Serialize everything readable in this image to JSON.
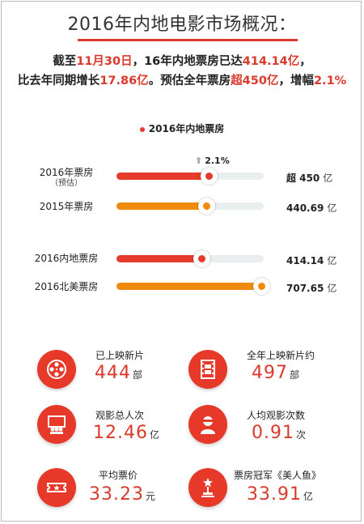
{
  "title": "2016年内地电影市场概况：",
  "summary": {
    "l1_a": "截至",
    "l1_b": "11月30日",
    "l1_c": "，16年内地票房已达",
    "l1_d": "414.14亿",
    "l1_e": "，",
    "l2_a": "比去年同期增长",
    "l2_b": "17.86亿",
    "l2_c": "。预估全年票房",
    "l2_d": "超450亿",
    "l2_e": "，增幅",
    "l2_f": "2.1%"
  },
  "chart_data": {
    "type": "bar",
    "orientation": "horizontal",
    "title": "",
    "legend": [
      "2016年内地票房"
    ],
    "categories": [
      "2016年票房（预估）",
      "2015年票房",
      "2016内地票房",
      "2016北美票房"
    ],
    "values": [
      450,
      440.69,
      414.14,
      707.65
    ],
    "unit": "亿",
    "growth_annotation": "2.1%",
    "colors": [
      "#e53b2c",
      "#f08a0c",
      "#e53b2c",
      "#f08a0c"
    ]
  },
  "rows": [
    {
      "label": "2016年票房",
      "sub": "（预估）",
      "value": "超 450",
      "unit": "亿"
    },
    {
      "label": "2015年票房",
      "sub": "",
      "value": "440.69",
      "unit": "亿"
    },
    {
      "label": "2016内地票房",
      "sub": "",
      "value": "414.14",
      "unit": "亿"
    },
    {
      "label": "2016北美票房",
      "sub": "",
      "value": "707.65",
      "unit": "亿"
    }
  ],
  "stats": [
    {
      "icon": "film-reel-icon",
      "label": "已上映新片",
      "value": "444",
      "unit": "部"
    },
    {
      "icon": "film-strip-icon",
      "label": "全年上映新片约",
      "value": "497",
      "unit": "部"
    },
    {
      "icon": "audience-icon",
      "label": "观影总人次",
      "value": "12.46",
      "unit": "亿"
    },
    {
      "icon": "viewer-icon",
      "label": "人均观影次数",
      "value": "0.91",
      "unit": "次"
    },
    {
      "icon": "ticket-icon",
      "label": "平均票价",
      "value": "33.23",
      "unit": "元"
    },
    {
      "icon": "trophy-icon",
      "label": "票房冠军《美人鱼》",
      "value": "33.91",
      "unit": "亿"
    }
  ],
  "colors": {
    "accent": "#d93a2b",
    "red_bar": "#e53b2c",
    "orange_bar": "#f08a0c",
    "track": "#e9eeef"
  }
}
